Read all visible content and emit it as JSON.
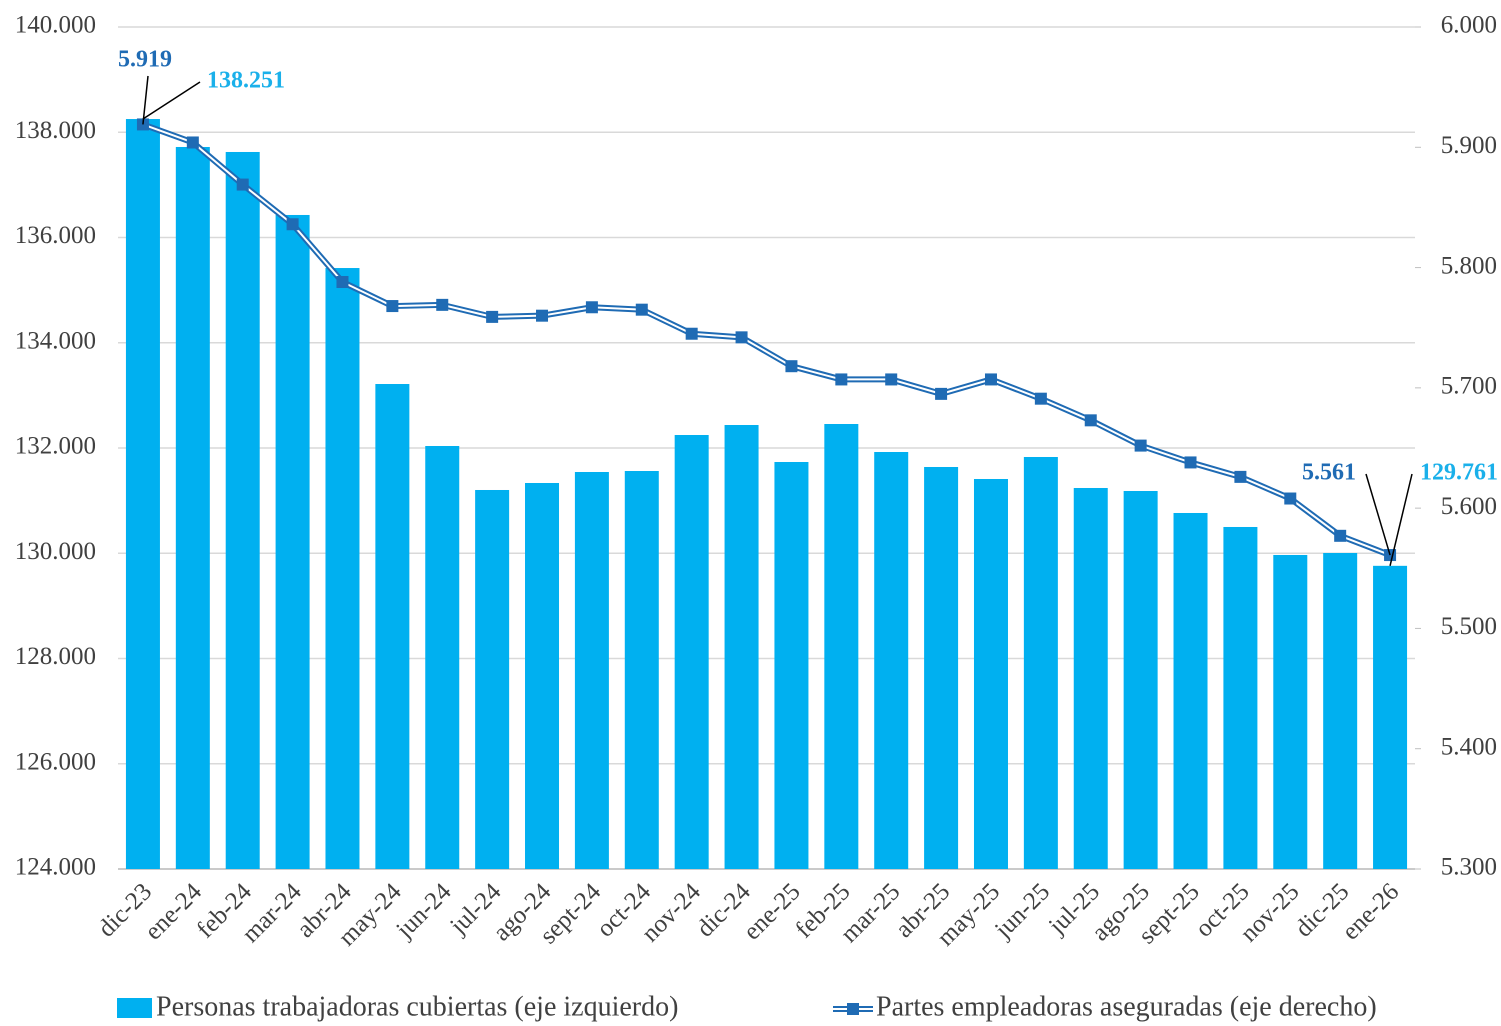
{
  "chart_data": {
    "type": "bar",
    "categories": [
      "dic-23",
      "ene-24",
      "feb-24",
      "mar-24",
      "abr-24",
      "may-24",
      "jun-24",
      "jul-24",
      "ago-24",
      "sept-24",
      "oct-24",
      "nov-24",
      "dic-24",
      "ene-25",
      "feb-25",
      "mar-25",
      "abr-25",
      "may-25",
      "jun-25",
      "jul-25",
      "ago-25",
      "sept-25",
      "oct-25",
      "nov-25",
      "dic-25",
      "ene-26"
    ],
    "series": [
      {
        "name": "Personas trabajadoras cubiertas (eje izquierdo)",
        "type": "bar",
        "axis": "y",
        "color": "#00b0f0",
        "values": [
          138251,
          137720,
          137625,
          136428,
          135420,
          133216,
          132038,
          131202,
          131335,
          131544,
          131563,
          132247,
          132437,
          131734,
          132456,
          131924,
          131639,
          131411,
          131829,
          131240,
          131183,
          130765,
          130499,
          129967,
          130005,
          129761
        ],
        "value_labels": [
          "138.251",
          null,
          null,
          null,
          null,
          null,
          null,
          null,
          null,
          null,
          null,
          null,
          null,
          null,
          null,
          null,
          null,
          null,
          null,
          null,
          null,
          null,
          null,
          null,
          null,
          "129.761"
        ]
      },
      {
        "name": "Partes empleadoras aseguradas (eje derecho)",
        "type": "line",
        "axis": "y2",
        "color": "#1f6bb4",
        "values": [
          5919,
          5904,
          5869,
          5836,
          5788,
          5768,
          5769,
          5759,
          5760,
          5767,
          5765,
          5745,
          5742,
          5718,
          5707,
          5707,
          5695,
          5707,
          5691,
          5673,
          5652,
          5638,
          5626,
          5608,
          5577,
          5561
        ],
        "value_labels": [
          "5.919",
          null,
          null,
          null,
          null,
          null,
          null,
          null,
          null,
          null,
          null,
          null,
          null,
          null,
          null,
          null,
          null,
          null,
          null,
          null,
          null,
          null,
          null,
          null,
          null,
          "5.561"
        ]
      }
    ],
    "ylim": [
      124000,
      140000
    ],
    "yticks": [
      {
        "value": 124000,
        "label": "124.000"
      },
      {
        "value": 126000,
        "label": "126.000"
      },
      {
        "value": 128000,
        "label": "128.000"
      },
      {
        "value": 130000,
        "label": "130.000"
      },
      {
        "value": 132000,
        "label": "132.000"
      },
      {
        "value": 134000,
        "label": "134.000"
      },
      {
        "value": 136000,
        "label": "136.000"
      },
      {
        "value": 138000,
        "label": "138.000"
      },
      {
        "value": 140000,
        "label": "140.000"
      }
    ],
    "y2lim": [
      5300,
      6000
    ],
    "y2ticks": [
      {
        "value": 5300,
        "label": "5.300"
      },
      {
        "value": 5400,
        "label": "5.400"
      },
      {
        "value": 5500,
        "label": "5.500"
      },
      {
        "value": 5600,
        "label": "5.600"
      },
      {
        "value": 5700,
        "label": "5.700"
      },
      {
        "value": 5800,
        "label": "5.800"
      },
      {
        "value": 5900,
        "label": "5.900"
      },
      {
        "value": 6000,
        "label": "6.000"
      }
    ],
    "grid": true,
    "legend": "bottom"
  }
}
